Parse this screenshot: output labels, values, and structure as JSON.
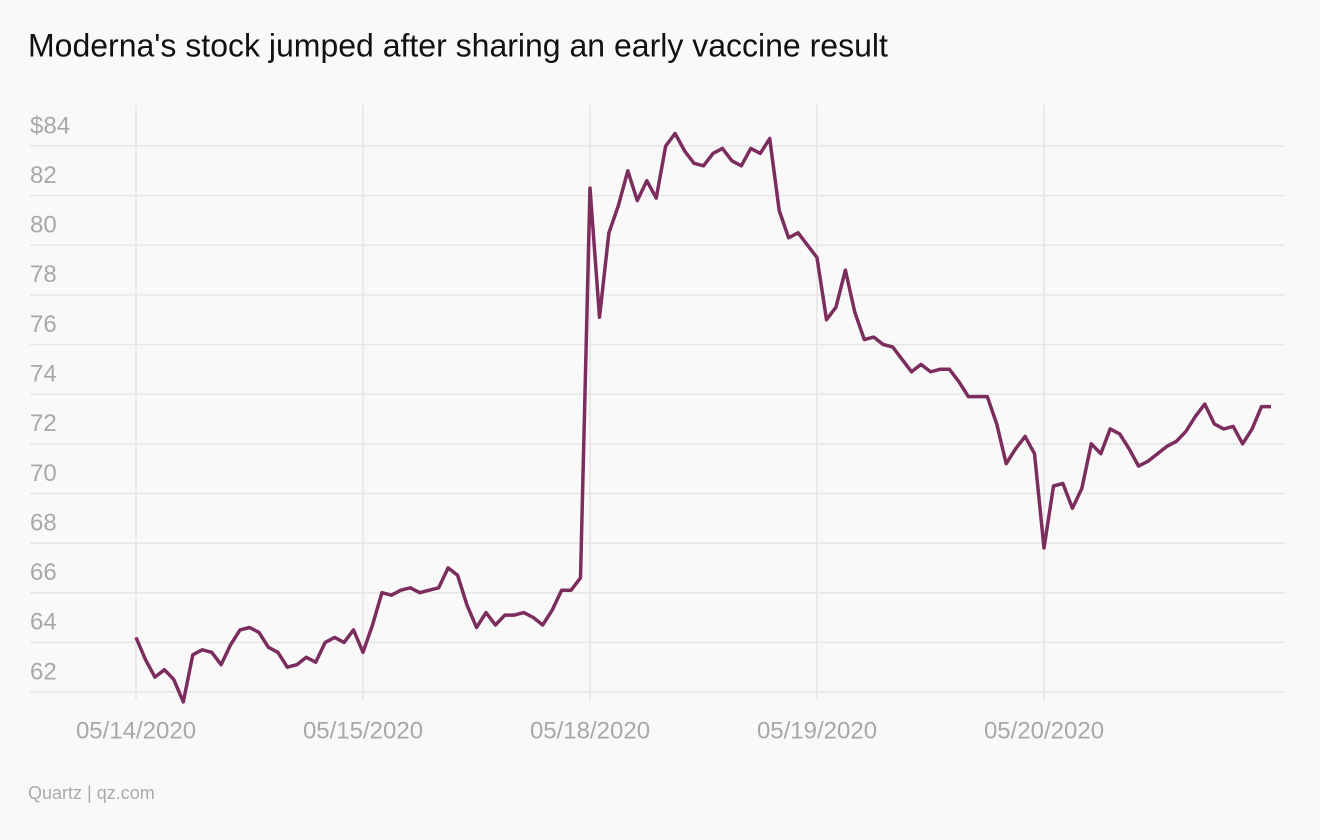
{
  "chart_data": {
    "type": "line",
    "title": "Moderna's stock jumped after sharing an early vaccine result",
    "source": "Quartz | qz.com",
    "categories": [
      "05/14/2020",
      null,
      null,
      null,
      null,
      null,
      null,
      null,
      null,
      null,
      null,
      null,
      null,
      null,
      null,
      null,
      null,
      null,
      null,
      null,
      null,
      null,
      null,
      null,
      "05/15/2020",
      null,
      null,
      null,
      null,
      null,
      null,
      null,
      null,
      null,
      null,
      null,
      null,
      null,
      null,
      null,
      null,
      null,
      null,
      null,
      null,
      null,
      null,
      null,
      "05/18/2020",
      null,
      null,
      null,
      null,
      null,
      null,
      null,
      null,
      null,
      null,
      null,
      null,
      null,
      null,
      null,
      null,
      null,
      null,
      null,
      null,
      null,
      null,
      null,
      "05/19/2020",
      null,
      null,
      null,
      null,
      null,
      null,
      null,
      null,
      null,
      null,
      null,
      null,
      null,
      null,
      null,
      null,
      null,
      null,
      null,
      null,
      null,
      null,
      null,
      "05/20/2020",
      null,
      null,
      null,
      null,
      null,
      null,
      null,
      null,
      null,
      null,
      null,
      null,
      null,
      null,
      null,
      null,
      null,
      null,
      null,
      null,
      null,
      null,
      null,
      null
    ],
    "series": [
      {
        "name": "Moderna",
        "color": "#7b2d5e",
        "values": [
          64.2,
          63.3,
          62.6,
          62.9,
          62.5,
          61.6,
          63.5,
          63.7,
          63.6,
          63.1,
          63.9,
          64.5,
          64.6,
          64.4,
          63.8,
          63.6,
          63.0,
          63.1,
          63.4,
          63.2,
          64.0,
          64.2,
          64.0,
          64.5,
          63.6,
          64.7,
          66.0,
          65.9,
          66.1,
          66.2,
          66.0,
          66.1,
          66.2,
          67.0,
          66.7,
          65.5,
          64.6,
          65.2,
          64.7,
          65.1,
          65.1,
          65.2,
          65.0,
          64.7,
          65.3,
          66.1,
          66.1,
          66.6,
          82.3,
          77.1,
          80.5,
          81.6,
          83.0,
          81.8,
          82.6,
          81.9,
          84.0,
          84.5,
          83.8,
          83.3,
          83.2,
          83.7,
          83.9,
          83.4,
          83.2,
          83.9,
          83.7,
          84.3,
          81.4,
          80.3,
          80.5,
          80.0,
          79.5,
          77.0,
          77.5,
          79.0,
          77.3,
          76.2,
          76.3,
          76.0,
          75.9,
          75.4,
          74.9,
          75.2,
          74.9,
          75.0,
          75.0,
          74.5,
          73.9,
          73.9,
          73.9,
          72.8,
          71.2,
          71.8,
          72.3,
          71.6,
          67.8,
          70.3,
          70.4,
          69.4,
          70.2,
          72.0,
          71.6,
          72.6,
          72.4,
          71.8,
          71.1,
          71.3,
          71.6,
          71.9,
          72.1,
          72.5,
          73.1,
          73.6,
          72.8,
          72.6,
          72.7,
          72.0,
          72.6,
          73.5,
          73.5
        ]
      }
    ],
    "ylim": [
      62,
      85.65
    ],
    "yticks": [
      62,
      64,
      66,
      68,
      70,
      72,
      74,
      76,
      78,
      80,
      82,
      {
        "value": 84,
        "label": "$84"
      }
    ],
    "grid": true
  }
}
